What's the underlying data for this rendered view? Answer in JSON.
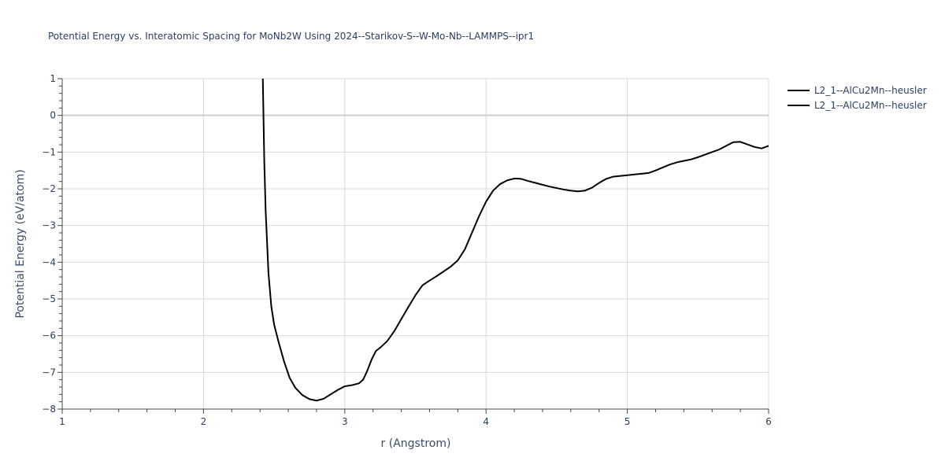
{
  "chart_data": {
    "type": "line",
    "title": "Potential Energy vs. Interatomic Spacing for MoNb2W Using 2024--Starikov-S--W-Mo-Nb--LAMMPS--ipr1",
    "xlabel": "r (Angstrom)",
    "ylabel": "Potential Energy (eV/atom)",
    "xlim": [
      1,
      6
    ],
    "ylim": [
      -8,
      1
    ],
    "xticks": [
      1,
      2,
      3,
      4,
      5,
      6
    ],
    "yticks": [
      1,
      0,
      -1,
      -2,
      -3,
      -4,
      -5,
      -6,
      -7,
      -8
    ],
    "xtick_labels": [
      "1",
      "2",
      "3",
      "4",
      "5",
      "6"
    ],
    "ytick_labels": [
      "1",
      "0",
      "−1",
      "−2",
      "−3",
      "−4",
      "−5",
      "−6",
      "−7",
      "−8"
    ],
    "grid": true,
    "legend_position": "top-right",
    "series": [
      {
        "name": "L2_1--AlCu2Mn--heusler",
        "color": "#000000",
        "x": [
          2.42,
          2.43,
          2.44,
          2.46,
          2.48,
          2.5,
          2.53,
          2.57,
          2.61,
          2.65,
          2.7,
          2.75,
          2.8,
          2.85,
          2.9,
          2.95,
          3.0,
          3.05,
          3.1,
          3.13,
          3.16,
          3.19,
          3.22,
          3.25,
          3.3,
          3.35,
          3.4,
          3.45,
          3.5,
          3.55,
          3.6,
          3.65,
          3.7,
          3.75,
          3.8,
          3.85,
          3.9,
          3.95,
          4.0,
          4.05,
          4.1,
          4.15,
          4.2,
          4.25,
          4.3,
          4.35,
          4.4,
          4.45,
          4.5,
          4.55,
          4.6,
          4.65,
          4.7,
          4.75,
          4.8,
          4.85,
          4.9,
          4.95,
          5.0,
          5.05,
          5.1,
          5.15,
          5.2,
          5.25,
          5.3,
          5.35,
          5.4,
          5.45,
          5.5,
          5.55,
          5.6,
          5.65,
          5.7,
          5.75,
          5.8,
          5.85,
          5.9,
          5.95,
          6.0
        ],
        "y": [
          1.0,
          -1.2,
          -2.6,
          -4.3,
          -5.2,
          -5.7,
          -6.15,
          -6.7,
          -7.15,
          -7.42,
          -7.62,
          -7.73,
          -7.77,
          -7.72,
          -7.6,
          -7.48,
          -7.38,
          -7.35,
          -7.3,
          -7.2,
          -6.95,
          -6.65,
          -6.42,
          -6.33,
          -6.15,
          -5.88,
          -5.55,
          -5.22,
          -4.9,
          -4.63,
          -4.5,
          -4.38,
          -4.25,
          -4.12,
          -3.95,
          -3.65,
          -3.2,
          -2.75,
          -2.35,
          -2.05,
          -1.87,
          -1.77,
          -1.72,
          -1.73,
          -1.79,
          -1.84,
          -1.89,
          -1.94,
          -1.98,
          -2.02,
          -2.05,
          -2.07,
          -2.05,
          -1.97,
          -1.84,
          -1.73,
          -1.67,
          -1.65,
          -1.63,
          -1.61,
          -1.59,
          -1.57,
          -1.5,
          -1.42,
          -1.34,
          -1.28,
          -1.24,
          -1.2,
          -1.14,
          -1.07,
          -1.0,
          -0.93,
          -0.83,
          -0.73,
          -0.72,
          -0.79,
          -0.86,
          -0.9,
          -0.83
        ]
      },
      {
        "name": "L2_1--AlCu2Mn--heusler",
        "color": "#000000",
        "x": [],
        "y": []
      }
    ]
  }
}
